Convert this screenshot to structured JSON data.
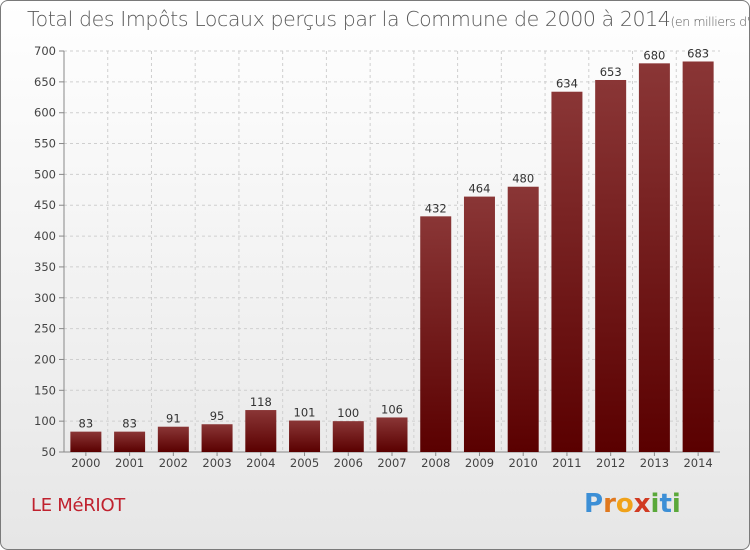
{
  "chart_data": {
    "type": "bar",
    "title": "Total des Impôts Locaux perçus par la Commune de 2000 à 2014",
    "unit_label": "(en milliers d'€)",
    "categories": [
      "2000",
      "2001",
      "2002",
      "2003",
      "2004",
      "2005",
      "2006",
      "2007",
      "2008",
      "2009",
      "2010",
      "2011",
      "2012",
      "2013",
      "2014"
    ],
    "values": [
      83,
      83,
      91,
      95,
      118,
      101,
      100,
      106,
      432,
      464,
      480,
      634,
      653,
      680,
      683
    ],
    "ylim": [
      50,
      700
    ],
    "yticks": [
      50,
      100,
      150,
      200,
      250,
      300,
      350,
      400,
      450,
      500,
      550,
      600,
      650,
      700
    ],
    "grid": true,
    "colors": {
      "bar_top": "#8a3636",
      "bar_bottom": "#5a0000",
      "grid": "#cfcfcf"
    }
  },
  "footer": {
    "commune": "LE MéRIOT",
    "logo_text": "Proxiti"
  }
}
